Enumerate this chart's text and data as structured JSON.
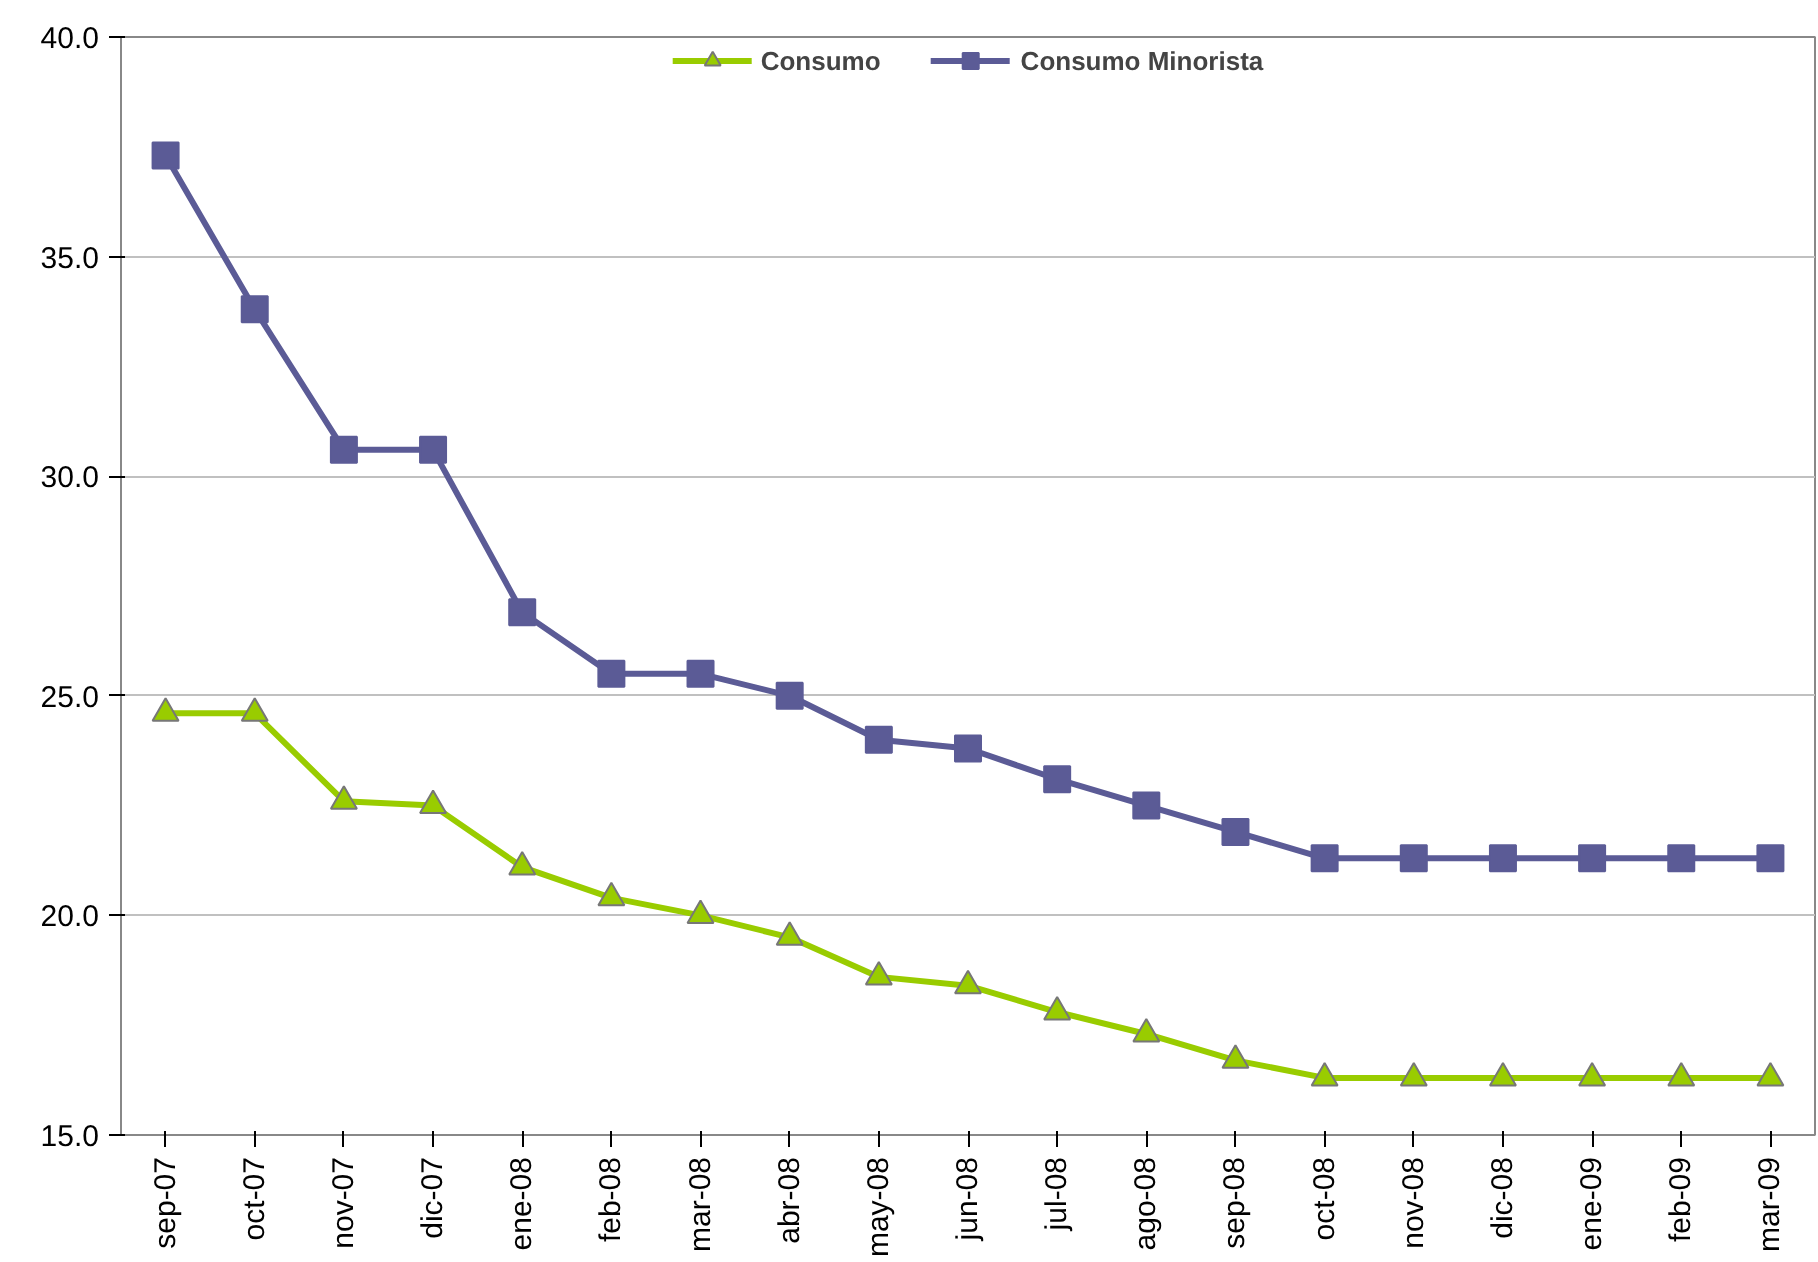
{
  "chart_data": {
    "type": "line",
    "categories": [
      "sep-07",
      "oct-07",
      "nov-07",
      "dic-07",
      "ene-08",
      "feb-08",
      "mar-08",
      "abr-08",
      "may-08",
      "jun-08",
      "jul-08",
      "ago-08",
      "sep-08",
      "oct-08",
      "nov-08",
      "dic-08",
      "ene-09",
      "feb-09",
      "mar-09"
    ],
    "series": [
      {
        "name": "Consumo",
        "color": "#99cc00",
        "marker": "triangle",
        "values": [
          24.6,
          24.6,
          22.6,
          22.5,
          21.1,
          20.4,
          20.0,
          19.5,
          18.6,
          18.4,
          17.8,
          17.3,
          16.7,
          16.3,
          16.3,
          16.3,
          16.3,
          16.3,
          16.3
        ]
      },
      {
        "name": "Consumo Minorista",
        "color": "#5b5b96",
        "marker": "square",
        "values": [
          37.3,
          33.8,
          30.6,
          30.6,
          26.9,
          25.5,
          25.5,
          25.0,
          24.0,
          23.8,
          23.1,
          22.5,
          21.9,
          21.3,
          21.3,
          21.3,
          21.3,
          21.3,
          21.3
        ]
      }
    ],
    "ylim": [
      15,
      40
    ],
    "yticks": [
      {
        "value": 15,
        "label": "15.0"
      },
      {
        "value": 20,
        "label": "20.0"
      },
      {
        "value": 25,
        "label": "25.0"
      },
      {
        "value": 30,
        "label": "30.0"
      },
      {
        "value": 35,
        "label": "35.0"
      },
      {
        "value": 40,
        "label": "40.0"
      }
    ],
    "grid": "y",
    "legend": "top",
    "line_style": "solid"
  }
}
